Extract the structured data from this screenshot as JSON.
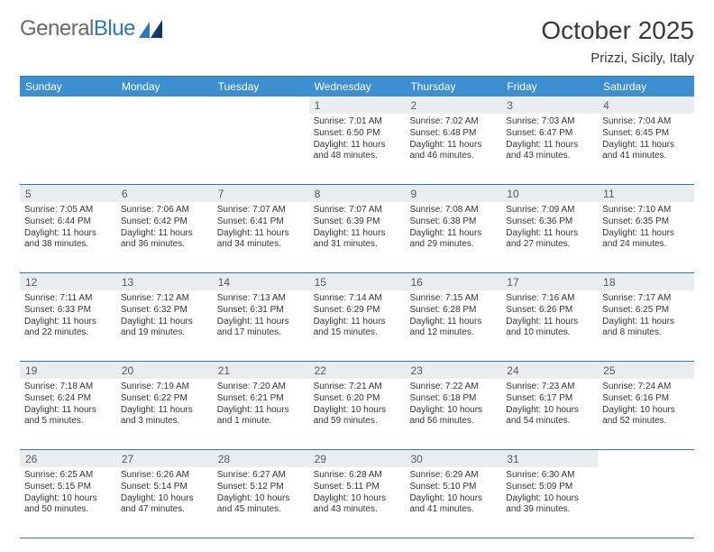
{
  "brand": {
    "part1": "General",
    "part2": "Blue"
  },
  "title": "October 2025",
  "location": "Prizzi, Sicily, Italy",
  "colors": {
    "header_bg": "#3d8fcf",
    "border": "#2e77b8",
    "daynum_bg": "#e9edef",
    "text": "#333333",
    "brand_grey": "#6a6a6a",
    "brand_blue": "#2e77b8",
    "background": "#ffffff"
  },
  "day_headers": [
    "Sunday",
    "Monday",
    "Tuesday",
    "Wednesday",
    "Thursday",
    "Friday",
    "Saturday"
  ],
  "weeks": [
    {
      "nums": [
        "",
        "",
        "",
        "1",
        "2",
        "3",
        "4"
      ],
      "cells": [
        null,
        null,
        null,
        {
          "sunrise": "Sunrise: 7:01 AM",
          "sunset": "Sunset: 6:50 PM",
          "day1": "Daylight: 11 hours",
          "day2": "and 48 minutes."
        },
        {
          "sunrise": "Sunrise: 7:02 AM",
          "sunset": "Sunset: 6:48 PM",
          "day1": "Daylight: 11 hours",
          "day2": "and 46 minutes."
        },
        {
          "sunrise": "Sunrise: 7:03 AM",
          "sunset": "Sunset: 6:47 PM",
          "day1": "Daylight: 11 hours",
          "day2": "and 43 minutes."
        },
        {
          "sunrise": "Sunrise: 7:04 AM",
          "sunset": "Sunset: 6:45 PM",
          "day1": "Daylight: 11 hours",
          "day2": "and 41 minutes."
        }
      ]
    },
    {
      "nums": [
        "5",
        "6",
        "7",
        "8",
        "9",
        "10",
        "11"
      ],
      "cells": [
        {
          "sunrise": "Sunrise: 7:05 AM",
          "sunset": "Sunset: 6:44 PM",
          "day1": "Daylight: 11 hours",
          "day2": "and 38 minutes."
        },
        {
          "sunrise": "Sunrise: 7:06 AM",
          "sunset": "Sunset: 6:42 PM",
          "day1": "Daylight: 11 hours",
          "day2": "and 36 minutes."
        },
        {
          "sunrise": "Sunrise: 7:07 AM",
          "sunset": "Sunset: 6:41 PM",
          "day1": "Daylight: 11 hours",
          "day2": "and 34 minutes."
        },
        {
          "sunrise": "Sunrise: 7:07 AM",
          "sunset": "Sunset: 6:39 PM",
          "day1": "Daylight: 11 hours",
          "day2": "and 31 minutes."
        },
        {
          "sunrise": "Sunrise: 7:08 AM",
          "sunset": "Sunset: 6:38 PM",
          "day1": "Daylight: 11 hours",
          "day2": "and 29 minutes."
        },
        {
          "sunrise": "Sunrise: 7:09 AM",
          "sunset": "Sunset: 6:36 PM",
          "day1": "Daylight: 11 hours",
          "day2": "and 27 minutes."
        },
        {
          "sunrise": "Sunrise: 7:10 AM",
          "sunset": "Sunset: 6:35 PM",
          "day1": "Daylight: 11 hours",
          "day2": "and 24 minutes."
        }
      ]
    },
    {
      "nums": [
        "12",
        "13",
        "14",
        "15",
        "16",
        "17",
        "18"
      ],
      "cells": [
        {
          "sunrise": "Sunrise: 7:11 AM",
          "sunset": "Sunset: 6:33 PM",
          "day1": "Daylight: 11 hours",
          "day2": "and 22 minutes."
        },
        {
          "sunrise": "Sunrise: 7:12 AM",
          "sunset": "Sunset: 6:32 PM",
          "day1": "Daylight: 11 hours",
          "day2": "and 19 minutes."
        },
        {
          "sunrise": "Sunrise: 7:13 AM",
          "sunset": "Sunset: 6:31 PM",
          "day1": "Daylight: 11 hours",
          "day2": "and 17 minutes."
        },
        {
          "sunrise": "Sunrise: 7:14 AM",
          "sunset": "Sunset: 6:29 PM",
          "day1": "Daylight: 11 hours",
          "day2": "and 15 minutes."
        },
        {
          "sunrise": "Sunrise: 7:15 AM",
          "sunset": "Sunset: 6:28 PM",
          "day1": "Daylight: 11 hours",
          "day2": "and 12 minutes."
        },
        {
          "sunrise": "Sunrise: 7:16 AM",
          "sunset": "Sunset: 6:26 PM",
          "day1": "Daylight: 11 hours",
          "day2": "and 10 minutes."
        },
        {
          "sunrise": "Sunrise: 7:17 AM",
          "sunset": "Sunset: 6:25 PM",
          "day1": "Daylight: 11 hours",
          "day2": "and 8 minutes."
        }
      ]
    },
    {
      "nums": [
        "19",
        "20",
        "21",
        "22",
        "23",
        "24",
        "25"
      ],
      "cells": [
        {
          "sunrise": "Sunrise: 7:18 AM",
          "sunset": "Sunset: 6:24 PM",
          "day1": "Daylight: 11 hours",
          "day2": "and 5 minutes."
        },
        {
          "sunrise": "Sunrise: 7:19 AM",
          "sunset": "Sunset: 6:22 PM",
          "day1": "Daylight: 11 hours",
          "day2": "and 3 minutes."
        },
        {
          "sunrise": "Sunrise: 7:20 AM",
          "sunset": "Sunset: 6:21 PM",
          "day1": "Daylight: 11 hours",
          "day2": "and 1 minute."
        },
        {
          "sunrise": "Sunrise: 7:21 AM",
          "sunset": "Sunset: 6:20 PM",
          "day1": "Daylight: 10 hours",
          "day2": "and 59 minutes."
        },
        {
          "sunrise": "Sunrise: 7:22 AM",
          "sunset": "Sunset: 6:18 PM",
          "day1": "Daylight: 10 hours",
          "day2": "and 56 minutes."
        },
        {
          "sunrise": "Sunrise: 7:23 AM",
          "sunset": "Sunset: 6:17 PM",
          "day1": "Daylight: 10 hours",
          "day2": "and 54 minutes."
        },
        {
          "sunrise": "Sunrise: 7:24 AM",
          "sunset": "Sunset: 6:16 PM",
          "day1": "Daylight: 10 hours",
          "day2": "and 52 minutes."
        }
      ]
    },
    {
      "nums": [
        "26",
        "27",
        "28",
        "29",
        "30",
        "31",
        ""
      ],
      "cells": [
        {
          "sunrise": "Sunrise: 6:25 AM",
          "sunset": "Sunset: 5:15 PM",
          "day1": "Daylight: 10 hours",
          "day2": "and 50 minutes."
        },
        {
          "sunrise": "Sunrise: 6:26 AM",
          "sunset": "Sunset: 5:14 PM",
          "day1": "Daylight: 10 hours",
          "day2": "and 47 minutes."
        },
        {
          "sunrise": "Sunrise: 6:27 AM",
          "sunset": "Sunset: 5:12 PM",
          "day1": "Daylight: 10 hours",
          "day2": "and 45 minutes."
        },
        {
          "sunrise": "Sunrise: 6:28 AM",
          "sunset": "Sunset: 5:11 PM",
          "day1": "Daylight: 10 hours",
          "day2": "and 43 minutes."
        },
        {
          "sunrise": "Sunrise: 6:29 AM",
          "sunset": "Sunset: 5:10 PM",
          "day1": "Daylight: 10 hours",
          "day2": "and 41 minutes."
        },
        {
          "sunrise": "Sunrise: 6:30 AM",
          "sunset": "Sunset: 5:09 PM",
          "day1": "Daylight: 10 hours",
          "day2": "and 39 minutes."
        },
        null
      ]
    }
  ]
}
